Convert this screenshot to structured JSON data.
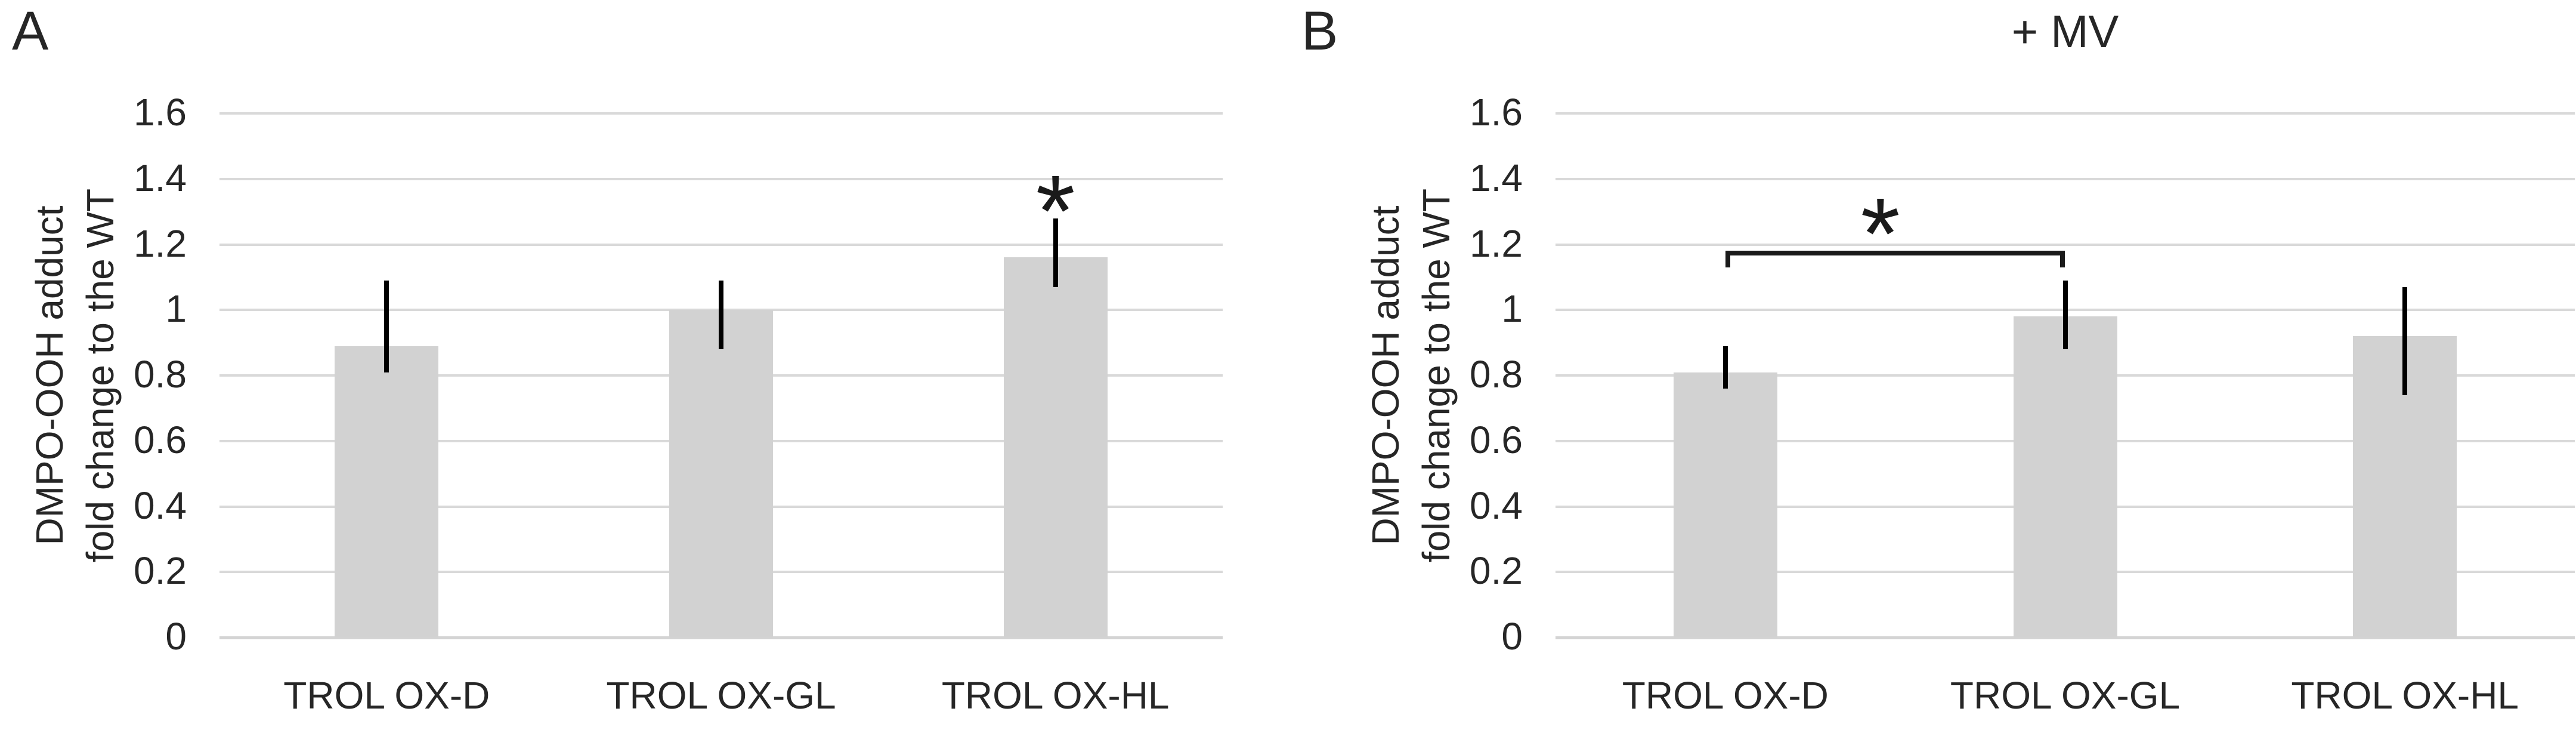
{
  "figure": {
    "background": "#ffffff",
    "text_color": "#262626",
    "bar_fill": "#d2d2d2",
    "gridline_color": "#d9d9d9",
    "axisline_color": "#d4d4d4",
    "error_bar_color": "#000000",
    "annotation_color": "#1a1a1a"
  },
  "chart_data": [
    {
      "type": "bar",
      "panel_label": "A",
      "title": "",
      "ylabel_line1": "DMPO-OOH adduct",
      "ylabel_line2": "fold change to the WT",
      "ylim": [
        0,
        1.6
      ],
      "ytick_step": 0.2,
      "ytick_labels": [
        "0",
        "0.2",
        "0.4",
        "0.6",
        "0.8",
        "1",
        "1.2",
        "1.4",
        "1.6"
      ],
      "grid": true,
      "legend": "none",
      "categories": [
        "TROL OX-D",
        "TROL OX-GL",
        "TROL OX-HL"
      ],
      "values": [
        0.89,
        1.0,
        1.16
      ],
      "error_low": [
        0.81,
        0.88,
        1.07
      ],
      "error_high": [
        1.09,
        1.09,
        1.28
      ],
      "annotations": [
        {
          "type": "star",
          "bar_index": 2,
          "y": 1.36,
          "label": "*"
        }
      ]
    },
    {
      "type": "bar",
      "panel_label": "B",
      "title": "+ MV",
      "ylabel_line1": "DMPO-OOH adduct",
      "ylabel_line2": "fold change to the WT",
      "ylim": [
        0,
        1.6
      ],
      "ytick_step": 0.2,
      "ytick_labels": [
        "0",
        "0.2",
        "0.4",
        "0.6",
        "0.8",
        "1",
        "1.2",
        "1.4",
        "1.6"
      ],
      "grid": true,
      "legend": "none",
      "categories": [
        "TROL OX-D",
        "TROL OX-GL",
        "TROL OX-HL"
      ],
      "values": [
        0.81,
        0.98,
        0.92
      ],
      "error_low": [
        0.76,
        0.88,
        0.74
      ],
      "error_high": [
        0.89,
        1.09,
        1.07
      ],
      "annotations": [
        {
          "type": "bracket",
          "from_bar": 0,
          "to_bar": 1,
          "y": 1.18,
          "drop_to": 1.13,
          "label": "*",
          "label_y": 1.29
        }
      ]
    }
  ]
}
